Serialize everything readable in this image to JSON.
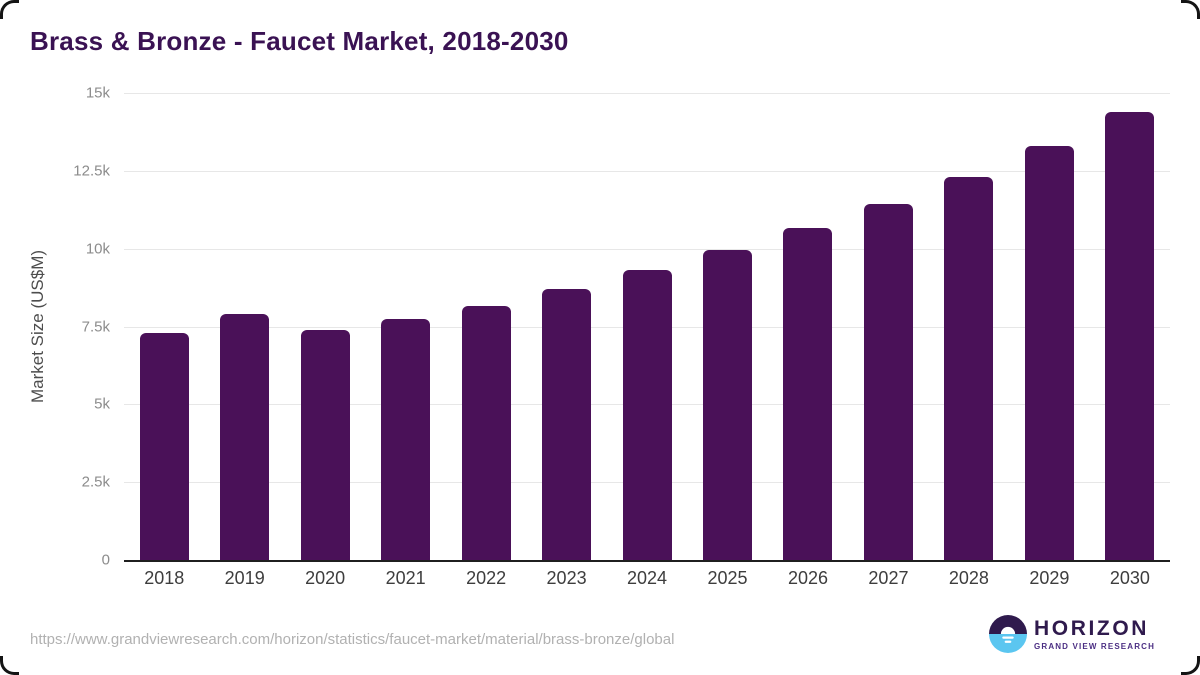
{
  "chart_data": {
    "type": "bar",
    "title": "Brass & Bronze - Faucet Market, 2018-2030",
    "xlabel": "",
    "ylabel": "Market Size (US$M)",
    "categories": [
      "2018",
      "2019",
      "2020",
      "2021",
      "2022",
      "2023",
      "2024",
      "2025",
      "2026",
      "2027",
      "2028",
      "2029",
      "2030"
    ],
    "values": [
      7300,
      7900,
      7400,
      7750,
      8150,
      8700,
      9300,
      9950,
      10650,
      11450,
      12300,
      13300,
      14400
    ],
    "ylim": [
      0,
      15000
    ],
    "yticks": [
      {
        "label": "15k",
        "value": 15000
      },
      {
        "label": "12.5k",
        "value": 12500
      },
      {
        "label": "10k",
        "value": 10000
      },
      {
        "label": "7.5k",
        "value": 7500
      },
      {
        "label": "5k",
        "value": 5000
      },
      {
        "label": "2.5k",
        "value": 2500
      },
      {
        "label": "0",
        "value": 0
      }
    ],
    "grid": "horizontal",
    "legend": "none",
    "bar_color": "#4a1158"
  },
  "colors": {
    "title": "#3a1253",
    "bar": "#4a1158",
    "axis_line": "#1f1f1f",
    "gridline": "#e7e7e7",
    "logo_dark_purple": "#2f1a4d",
    "logo_light_blue": "#5bc6f0"
  },
  "footer": {
    "url": "https://www.grandviewresearch.com/horizon/statistics/faucet-market/material/brass-bronze/global",
    "logo": {
      "name": "HORIZON",
      "tagline": "GRAND VIEW RESEARCH"
    }
  }
}
